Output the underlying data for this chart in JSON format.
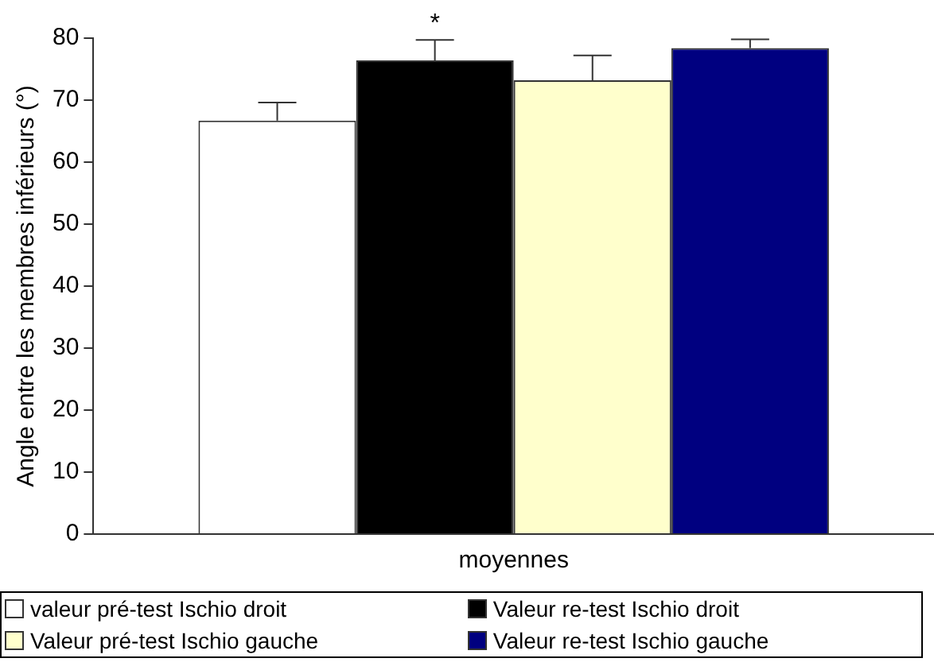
{
  "chart_data": {
    "type": "bar",
    "ylabel": "Angle entre les membres inférieurs (°)",
    "categories": [
      "moyennes"
    ],
    "ylim": [
      0,
      80
    ],
    "yticks": [
      0,
      10,
      20,
      30,
      40,
      50,
      60,
      70,
      80
    ],
    "grid": false,
    "legend": "bottom",
    "annotations": [
      "*"
    ],
    "series": [
      {
        "name": "valeur pré-test Ischio droit",
        "color": "#ffffff",
        "values": [
          66.7
        ],
        "errors": [
          [
            66.7,
            69.6
          ]
        ]
      },
      {
        "name": "Valeur re-test Ischio droit",
        "color": "#000000",
        "values": [
          76.4
        ],
        "errors": [
          [
            76.4,
            79.7
          ]
        ]
      },
      {
        "name": "Valeur pré-test Ischio gauche",
        "color": "#ffffcc",
        "values": [
          73.2
        ],
        "errors": [
          [
            73.2,
            77.2
          ]
        ]
      },
      {
        "name": "Valeur re-test Ischio gauche",
        "color": "#000080",
        "values": [
          78.4
        ],
        "errors": [
          [
            78.4,
            79.8
          ]
        ]
      }
    ]
  }
}
